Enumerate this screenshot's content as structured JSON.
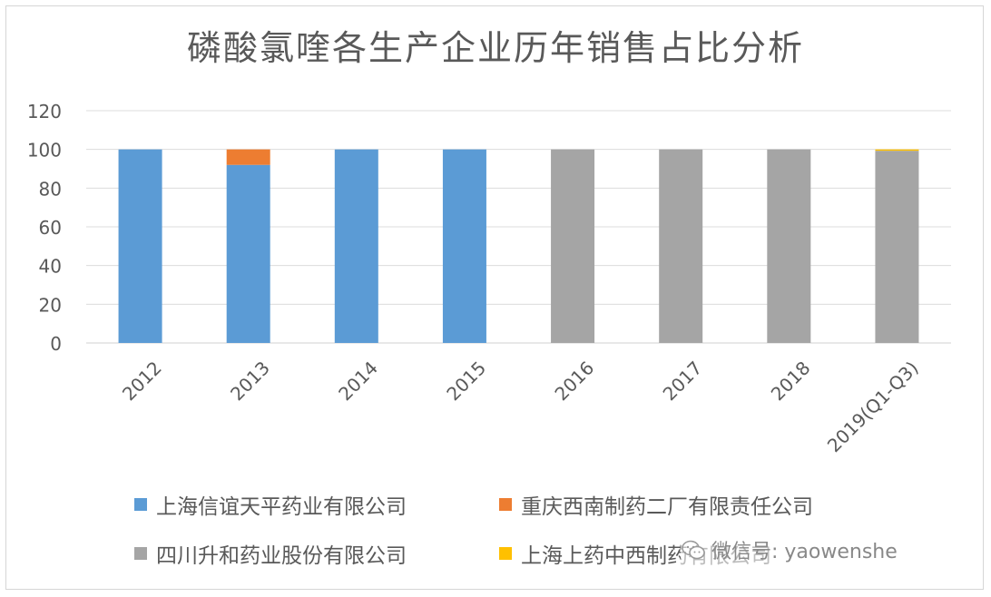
{
  "chart_data": {
    "type": "bar",
    "stacked": true,
    "title": "磷酸氯喹各生产企业历年销售占比分析",
    "xlabel": "",
    "ylabel": "",
    "ylim": [
      0,
      120
    ],
    "yticks": [
      0,
      20,
      40,
      60,
      80,
      100,
      120
    ],
    "grid": true,
    "legend_position": "bottom",
    "categories": [
      "2012",
      "2013",
      "2014",
      "2015",
      "2016",
      "2017",
      "2018",
      "2019(Q1-Q3)"
    ],
    "series": [
      {
        "name": "上海信谊天平药业有限公司",
        "color": "#5b9bd5",
        "values": [
          100,
          92,
          100,
          100,
          0,
          0,
          0,
          0
        ]
      },
      {
        "name": "重庆西南制药二厂有限责任公司",
        "color": "#ed7d31",
        "values": [
          0,
          8,
          0,
          0,
          0,
          0,
          0,
          0
        ]
      },
      {
        "name": "四川升和药业股份有限公司",
        "color": "#a5a5a5",
        "values": [
          0,
          0,
          0,
          0,
          100,
          100,
          100,
          99.3
        ]
      },
      {
        "name": "上海上药中西制药有限公司",
        "color": "#ffc000",
        "values": [
          0,
          0,
          0,
          0,
          0,
          0,
          0,
          0.7
        ]
      }
    ]
  },
  "watermark": {
    "icon": "wechat-icon",
    "text": "微信号: yaowenshe"
  }
}
